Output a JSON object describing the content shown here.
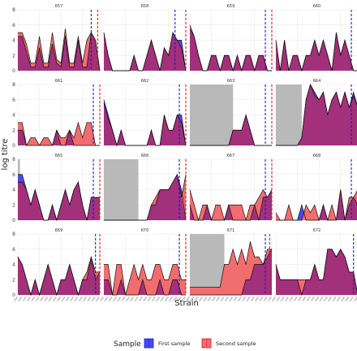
{
  "chart_data": {
    "type": "area",
    "xlabel": "Strain",
    "ylabel": "log titre",
    "ylim": [
      0,
      8
    ],
    "yticks": [
      0,
      2,
      4,
      6,
      8
    ],
    "n_points": 20,
    "x_tick_label": "1968",
    "legend": {
      "title": "Sample",
      "placement": "bottom",
      "entries": [
        {
          "name": "First sample",
          "color": "#4a4aee"
        },
        {
          "name": "Second sample",
          "color": "#f26d6d"
        }
      ]
    },
    "colors": {
      "first_fill": "#4a4aee",
      "second_fill": "#f26d6d",
      "overlap_fill": "#a3307a",
      "first_line": "#1a1ad6",
      "second_line": "#e01818",
      "shade": "#b9b9b9",
      "grid": "#e6e6e6"
    },
    "panels": [
      {
        "id": "657",
        "shade": null,
        "vline_first": 17,
        "vline_second": 18.5,
        "first": [
          4.5,
          4.5,
          2.5,
          0.5,
          0.5,
          3,
          0.5,
          0.5,
          3.5,
          1,
          0.5,
          4.5,
          0.5,
          0.5,
          4,
          0.5,
          0.5,
          5,
          4,
          0
        ],
        "second": [
          5,
          5,
          3.5,
          1,
          1,
          4.5,
          1,
          1,
          5,
          1.5,
          1,
          5.5,
          1,
          1,
          4.5,
          1,
          4,
          5,
          4,
          0
        ]
      },
      {
        "id": "658",
        "shade": null,
        "vline_first": 16.5,
        "vline_second": 19,
        "first": [
          5,
          2,
          0,
          0,
          0,
          0,
          0,
          2,
          0,
          0,
          2,
          4,
          2,
          0,
          3,
          2,
          5,
          4,
          4,
          0
        ],
        "second": [
          5,
          2,
          0,
          0,
          0,
          0,
          0,
          2,
          0,
          0,
          2,
          4,
          2,
          0,
          3,
          2,
          5,
          4,
          3,
          0
        ]
      },
      {
        "id": "659",
        "shade": null,
        "vline_first": 17.5,
        "vline_second": 19,
        "first": [
          5.5,
          4.5,
          2,
          0,
          0,
          2,
          2,
          0,
          2,
          2,
          0,
          2,
          0,
          2,
          2,
          0,
          2,
          2,
          0,
          0
        ],
        "second": [
          6,
          4.5,
          2,
          0,
          0,
          2,
          2,
          0,
          2,
          2,
          0,
          2,
          0,
          2,
          2,
          0,
          2,
          2,
          0,
          0
        ]
      },
      {
        "id": "660",
        "shade": null,
        "vline_first": 17.5,
        "vline_second": 19,
        "first": [
          4,
          0,
          4,
          0,
          2,
          2,
          0,
          2,
          2,
          4,
          2,
          4,
          2,
          0,
          5,
          2,
          4,
          2,
          0,
          0
        ],
        "second": [
          4,
          0,
          4,
          0,
          2,
          2,
          0,
          2,
          2,
          4,
          2,
          4,
          2,
          0,
          5,
          2,
          4,
          2,
          0,
          0
        ]
      },
      {
        "id": "661",
        "shade": null,
        "vline_first": 17.5,
        "vline_second": 19,
        "first": [
          2,
          2,
          0,
          0,
          0,
          0,
          0,
          0,
          0,
          2,
          0,
          0,
          2,
          0,
          0,
          0,
          0,
          0,
          0,
          0
        ],
        "second": [
          3,
          3,
          0,
          1,
          1,
          0,
          1,
          1,
          0,
          2,
          1,
          1,
          2,
          1,
          3,
          1,
          3,
          3,
          0,
          0
        ]
      },
      {
        "id": "662",
        "shade": null,
        "vline_first": 17.5,
        "vline_second": 19,
        "first": [
          6,
          4,
          2,
          0,
          2,
          0,
          0,
          0,
          0,
          0,
          0,
          2,
          0,
          0,
          4,
          2,
          2,
          4,
          4,
          0
        ],
        "second": [
          5.5,
          3.5,
          2,
          0,
          2,
          0,
          0,
          0,
          0,
          0,
          0,
          2,
          0,
          0,
          4,
          2,
          2,
          4,
          3,
          0
        ]
      },
      {
        "id": "663",
        "shade": [
          0,
          10
        ],
        "vline_first": 17.5,
        "vline_second": 19,
        "first": [
          0,
          0,
          0,
          0,
          0,
          0,
          0,
          0,
          0,
          0,
          2,
          2,
          2,
          4,
          2,
          0,
          0,
          0,
          0,
          0
        ],
        "second": [
          0,
          0,
          0,
          0,
          0,
          0,
          0,
          0,
          0,
          0,
          2,
          2,
          2,
          4,
          2,
          0,
          0,
          0,
          0,
          0
        ]
      },
      {
        "id": "664",
        "shade": [
          0,
          6
        ],
        "vline_first": 17.5,
        "vline_second": 19,
        "first": [
          0,
          0,
          0,
          0,
          0,
          0,
          1,
          6,
          8,
          7,
          6,
          7,
          4,
          6,
          7,
          5,
          7,
          5,
          7,
          5
        ],
        "second": [
          0,
          0,
          0,
          0,
          0,
          0,
          1,
          6,
          8,
          6.5,
          6,
          7,
          4,
          6,
          7,
          5,
          7,
          5,
          6.5,
          5
        ]
      },
      {
        "id": "665",
        "shade": [
          0,
          0.5
        ],
        "vline_first": 17.5,
        "vline_second": 19,
        "first": [
          6,
          6,
          4,
          2,
          4,
          2,
          0,
          0,
          2,
          0,
          2,
          4,
          2,
          4,
          5,
          2,
          0,
          3,
          3,
          3
        ],
        "second": [
          5,
          5,
          4,
          2,
          4,
          2,
          0,
          0,
          2,
          0,
          2,
          4,
          2,
          4,
          5,
          2,
          0,
          3,
          3,
          3
        ]
      },
      {
        "id": "666",
        "shade": [
          0,
          8
        ],
        "vline_first": 17.5,
        "vline_second": 19,
        "first": [
          0,
          0,
          0,
          0,
          0,
          0,
          0,
          0,
          0,
          0,
          0,
          2,
          2,
          4,
          4,
          4,
          5,
          6,
          4,
          0
        ],
        "second": [
          0,
          0,
          0,
          0,
          0,
          0,
          0,
          0,
          0,
          0,
          0,
          2,
          3,
          4,
          4,
          4,
          5,
          6,
          3,
          6
        ]
      },
      {
        "id": "667",
        "shade": null,
        "vline_first": 17.5,
        "vline_second": 19,
        "first": [
          2,
          0,
          0,
          0,
          2,
          0,
          0,
          0,
          0,
          2,
          0,
          0,
          0,
          0,
          0,
          2,
          0,
          3,
          3,
          4
        ],
        "second": [
          4,
          2,
          0,
          2,
          2,
          0,
          2,
          2,
          0,
          2,
          2,
          2,
          2,
          0,
          2,
          2,
          3,
          4,
          3,
          4
        ]
      },
      {
        "id": "668",
        "shade": null,
        "vline_first": 17.5,
        "vline_second": 19,
        "first": [
          0,
          0,
          0,
          0,
          0,
          0,
          2,
          0,
          0,
          0,
          0,
          2,
          0,
          0,
          0,
          4,
          0,
          2,
          3,
          2
        ],
        "second": [
          1,
          0,
          0,
          2,
          0,
          0,
          0,
          2,
          1,
          2,
          0,
          2,
          0,
          2,
          0,
          4,
          0,
          3,
          3,
          4
        ]
      },
      {
        "id": "669",
        "shade": null,
        "vline_first": 18,
        "vline_second": 19,
        "first": [
          5,
          4,
          2,
          0,
          2,
          0,
          2,
          4,
          2,
          0,
          2,
          2,
          4,
          2,
          0,
          2,
          2,
          5,
          2,
          3
        ],
        "second": [
          5,
          4,
          2,
          0,
          2,
          0,
          2,
          4,
          2,
          0,
          2,
          2,
          4,
          2,
          0,
          2,
          3,
          5,
          3,
          3
        ]
      },
      {
        "id": "670",
        "shade": null,
        "vline_first": 17.5,
        "vline_second": 19,
        "first": [
          2,
          2,
          0,
          0,
          2,
          0,
          0,
          0,
          0,
          2,
          0,
          0,
          0,
          2,
          0,
          0,
          2,
          2,
          0,
          0
        ],
        "second": [
          4,
          4,
          0,
          4,
          4,
          0,
          2,
          4,
          2,
          4,
          2,
          2,
          4,
          4,
          2,
          2,
          4,
          4,
          2,
          2
        ]
      },
      {
        "id": "671",
        "shade": [
          0,
          8
        ],
        "vline_first": 17.5,
        "vline_second": 18.5,
        "first": [
          0,
          0,
          0,
          0,
          0,
          0,
          0,
          0,
          0,
          0,
          0,
          0,
          0,
          2,
          2,
          4,
          4,
          4,
          5,
          6
        ],
        "second": [
          1,
          1,
          1,
          1,
          1,
          1,
          1,
          1,
          4,
          4,
          6,
          4,
          6,
          4,
          7,
          5,
          5,
          4,
          6,
          6
        ]
      },
      {
        "id": "672",
        "shade": null,
        "vline_first": 18,
        "vline_second": 19,
        "first": [
          4,
          2,
          2,
          2,
          2,
          2,
          0,
          2,
          2,
          4,
          2,
          2,
          6,
          6,
          5,
          6,
          5,
          3,
          3,
          0
        ],
        "second": [
          4,
          2,
          2,
          2,
          2,
          2,
          2,
          2,
          2,
          4,
          2,
          2,
          6,
          6,
          5,
          6,
          5,
          3,
          3,
          0
        ]
      }
    ]
  }
}
